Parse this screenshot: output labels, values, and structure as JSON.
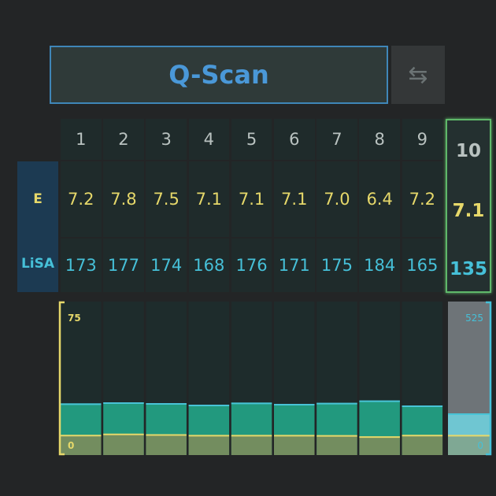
{
  "header": {
    "title": "Q-Scan",
    "swap_icon": "swap-arrows-icon"
  },
  "rows": {
    "e_label": "E",
    "lisa_label": "LiSA"
  },
  "columns": [
    {
      "n": "1",
      "e": "7.2",
      "lisa": "173"
    },
    {
      "n": "2",
      "e": "7.8",
      "lisa": "177"
    },
    {
      "n": "3",
      "e": "7.5",
      "lisa": "174"
    },
    {
      "n": "4",
      "e": "7.1",
      "lisa": "168"
    },
    {
      "n": "5",
      "e": "7.1",
      "lisa": "176"
    },
    {
      "n": "6",
      "e": "7.1",
      "lisa": "171"
    },
    {
      "n": "7",
      "e": "7.0",
      "lisa": "175"
    },
    {
      "n": "8",
      "e": "6.4",
      "lisa": "184"
    },
    {
      "n": "9",
      "e": "7.2",
      "lisa": "165"
    }
  ],
  "selected": {
    "n": "10",
    "e": "7.1",
    "lisa": "135"
  },
  "chart": {
    "e_max": "75",
    "e_min": "0",
    "lisa_max": "525",
    "lisa_min": "0",
    "e_color": "#e6d86a",
    "lisa_color": "#2aa88a",
    "selected_color": "#6fc6d2"
  }
}
